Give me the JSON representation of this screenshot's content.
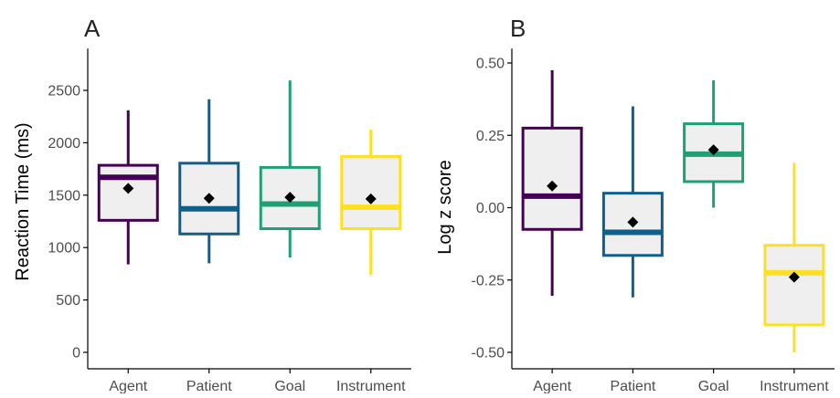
{
  "colors": {
    "Agent": "#440154",
    "Patient": "#0f5f8c",
    "Goal": "#1fa074",
    "Instrument": "#fde025",
    "box_fill": "#efefef",
    "axis": "#000000",
    "tick_text": "#4d4d4d",
    "mean_marker": "#000000"
  },
  "chart_data": [
    {
      "panel_label": "A",
      "type": "box",
      "title": "",
      "xlabel": "",
      "ylabel": "Reaction Time (ms)",
      "ylim": [
        -100,
        2900
      ],
      "yticks": [
        0,
        500,
        1000,
        1500,
        2000,
        2500
      ],
      "ytick_labels": [
        "0",
        "500",
        "1000",
        "1500",
        "2000",
        "2500"
      ],
      "grid": false,
      "categories": [
        "Agent",
        "Patient",
        "Goal",
        "Instrument"
      ],
      "series": [
        {
          "category": "Agent",
          "whisker_low": 840,
          "q1": 1260,
          "median": 1670,
          "q3": 1785,
          "whisker_high": 2310,
          "mean": 1565
        },
        {
          "category": "Patient",
          "whisker_low": 850,
          "q1": 1130,
          "median": 1370,
          "q3": 1805,
          "whisker_high": 2415,
          "mean": 1470
        },
        {
          "category": "Goal",
          "whisker_low": 905,
          "q1": 1180,
          "median": 1415,
          "q3": 1765,
          "whisker_high": 2595,
          "mean": 1480
        },
        {
          "category": "Instrument",
          "whisker_low": 740,
          "q1": 1180,
          "median": 1385,
          "q3": 1870,
          "whisker_high": 2125,
          "mean": 1465
        }
      ]
    },
    {
      "panel_label": "B",
      "type": "box",
      "title": "",
      "xlabel": "",
      "ylabel": "Log z score",
      "ylim": [
        -0.53,
        0.55
      ],
      "yticks": [
        -0.5,
        -0.25,
        0,
        0.25,
        0.5
      ],
      "ytick_labels": [
        "-0.50",
        "-0.25",
        "0.00",
        "0.25",
        "0.50"
      ],
      "grid": false,
      "categories": [
        "Agent",
        "Patient",
        "Goal",
        "Instrument"
      ],
      "series": [
        {
          "category": "Agent",
          "whisker_low": -0.305,
          "q1": -0.075,
          "median": 0.04,
          "q3": 0.275,
          "whisker_high": 0.475,
          "mean": 0.075
        },
        {
          "category": "Patient",
          "whisker_low": -0.31,
          "q1": -0.165,
          "median": -0.085,
          "q3": 0.05,
          "whisker_high": 0.35,
          "mean": -0.05
        },
        {
          "category": "Goal",
          "whisker_low": 0.0,
          "q1": 0.09,
          "median": 0.185,
          "q3": 0.29,
          "whisker_high": 0.44,
          "mean": 0.2
        },
        {
          "category": "Instrument",
          "whisker_low": -0.5,
          "q1": -0.405,
          "median": -0.225,
          "q3": -0.13,
          "whisker_high": 0.155,
          "mean": -0.24
        }
      ]
    }
  ]
}
